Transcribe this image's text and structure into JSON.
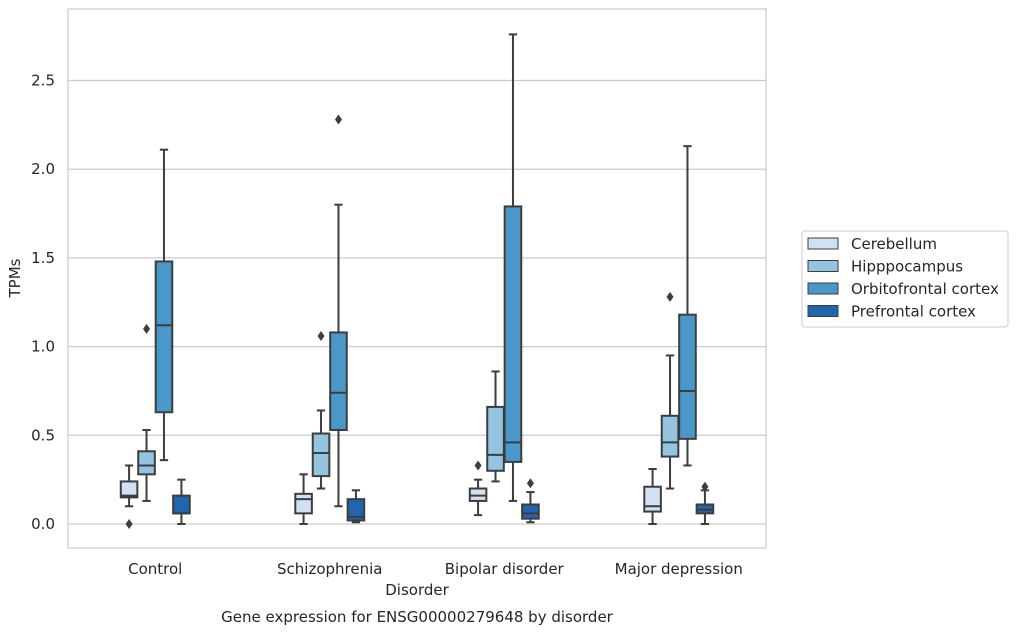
{
  "chart_data": {
    "type": "boxplot",
    "title": "",
    "caption": "Gene expression for ENSG00000279648 by disorder",
    "xlabel": "Disorder",
    "ylabel": "TPMs",
    "ylim": [
      -0.13,
      2.91
    ],
    "yticks": [
      "0.0",
      "0.5",
      "1.0",
      "1.5",
      "2.0",
      "2.5"
    ],
    "ytick_values": [
      0.0,
      0.5,
      1.0,
      1.5,
      2.0,
      2.5
    ],
    "grid": "horizontal",
    "legend_position": "right",
    "categories": [
      "Control",
      "Schizophrenia",
      "Bipolar disorder",
      "Major depression"
    ],
    "series": [
      {
        "name": "Cerebellum",
        "color": "#d0e1f2",
        "boxes": [
          {
            "whislo": 0.1,
            "q1": 0.15,
            "med": 0.16,
            "q3": 0.24,
            "whishi": 0.33,
            "fliers": [
              0.0
            ]
          },
          {
            "whislo": 0.0,
            "q1": 0.06,
            "med": 0.14,
            "q3": 0.17,
            "whishi": 0.28,
            "fliers": []
          },
          {
            "whislo": 0.05,
            "q1": 0.13,
            "med": 0.16,
            "q3": 0.2,
            "whishi": 0.25,
            "fliers": [
              0.33
            ]
          },
          {
            "whislo": 0.0,
            "q1": 0.07,
            "med": 0.1,
            "q3": 0.21,
            "whishi": 0.31,
            "fliers": []
          }
        ]
      },
      {
        "name": "Hipppocampus",
        "color": "#94c4df",
        "boxes": [
          {
            "whislo": 0.13,
            "q1": 0.28,
            "med": 0.33,
            "q3": 0.41,
            "whishi": 0.53,
            "fliers": [
              1.1
            ]
          },
          {
            "whislo": 0.2,
            "q1": 0.27,
            "med": 0.4,
            "q3": 0.51,
            "whishi": 0.64,
            "fliers": [
              1.06
            ]
          },
          {
            "whislo": 0.24,
            "q1": 0.3,
            "med": 0.39,
            "q3": 0.66,
            "whishi": 0.86,
            "fliers": []
          },
          {
            "whislo": 0.2,
            "q1": 0.38,
            "med": 0.46,
            "q3": 0.61,
            "whishi": 0.95,
            "fliers": [
              1.28
            ]
          }
        ]
      },
      {
        "name": "Orbitofrontal cortex",
        "color": "#4a98c9",
        "boxes": [
          {
            "whislo": 0.36,
            "q1": 0.63,
            "med": 1.12,
            "q3": 1.48,
            "whishi": 2.11,
            "fliers": []
          },
          {
            "whislo": 0.1,
            "q1": 0.53,
            "med": 0.74,
            "q3": 1.08,
            "whishi": 1.8,
            "fliers": [
              2.28
            ]
          },
          {
            "whislo": 0.13,
            "q1": 0.35,
            "med": 0.46,
            "q3": 1.79,
            "whishi": 2.76,
            "fliers": []
          },
          {
            "whislo": 0.33,
            "q1": 0.48,
            "med": 0.75,
            "q3": 1.18,
            "whishi": 2.13,
            "fliers": []
          }
        ]
      },
      {
        "name": "Prefrontal cortex",
        "color": "#2166ac",
        "boxes": [
          {
            "whislo": 0.0,
            "q1": 0.06,
            "med": 0.06,
            "q3": 0.16,
            "whishi": 0.25,
            "fliers": []
          },
          {
            "whislo": 0.01,
            "q1": 0.02,
            "med": 0.04,
            "q3": 0.14,
            "whishi": 0.19,
            "fliers": []
          },
          {
            "whislo": 0.01,
            "q1": 0.03,
            "med": 0.06,
            "q3": 0.11,
            "whishi": 0.18,
            "fliers": [
              0.23
            ]
          },
          {
            "whislo": 0.0,
            "q1": 0.06,
            "med": 0.08,
            "q3": 0.11,
            "whishi": 0.19,
            "fliers": [
              0.21
            ]
          }
        ]
      }
    ]
  }
}
